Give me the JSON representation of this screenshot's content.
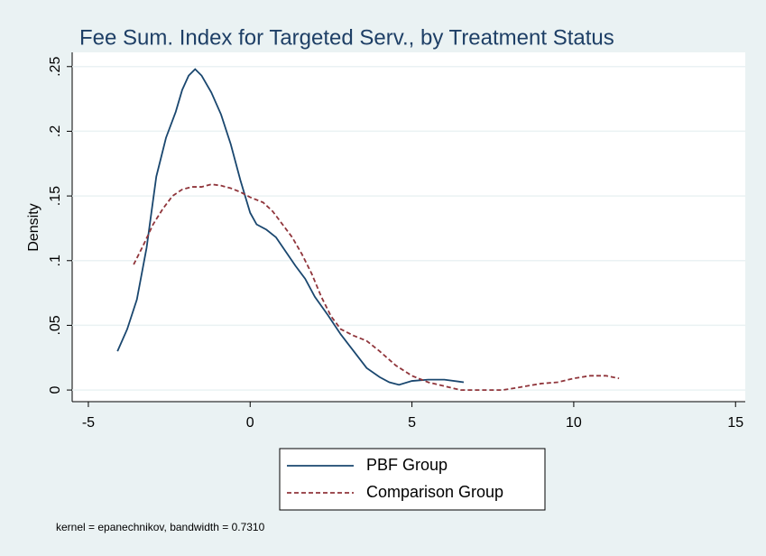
{
  "chart_data": {
    "type": "line",
    "title": "Fee Sum. Index for Targeted Serv., by Treatment Status",
    "y_label": "Density",
    "note": "kernel = epanechnikov, bandwidth = 0.7310",
    "xlim": [
      -5.5,
      15.3
    ],
    "xticks": [
      -5,
      0,
      5,
      10,
      15
    ],
    "ylim": [
      -0.009,
      0.261
    ],
    "yticks": [
      0,
      {
        "value": 0.05,
        "label": ".05"
      },
      {
        "value": 0.1,
        "label": ".1"
      },
      {
        "value": 0.15,
        "label": ".15"
      },
      {
        "value": 0.2,
        "label": ".2"
      },
      {
        "value": 0.25,
        "label": ".25"
      }
    ],
    "grid": true,
    "legend_position": "bottom",
    "series": [
      {
        "name": "PBF Group",
        "color": "#1a476f",
        "dash": false,
        "x": [
          -4.1,
          -3.8,
          -3.5,
          -3.2,
          -2.9,
          -2.6,
          -2.3,
          -2.1,
          -1.9,
          -1.7,
          -1.5,
          -1.2,
          -0.9,
          -0.6,
          -0.3,
          0,
          0.2,
          0.5,
          0.8,
          1.1,
          1.4,
          1.7,
          2.0,
          2.4,
          2.8,
          3.2,
          3.6,
          4.0,
          4.3,
          4.6,
          5.0,
          5.5,
          6.0,
          6.6
        ],
        "values": [
          0.03,
          0.047,
          0.07,
          0.11,
          0.165,
          0.195,
          0.215,
          0.232,
          0.243,
          0.248,
          0.243,
          0.23,
          0.213,
          0.19,
          0.162,
          0.137,
          0.128,
          0.124,
          0.118,
          0.107,
          0.096,
          0.086,
          0.072,
          0.058,
          0.043,
          0.03,
          0.017,
          0.01,
          0.006,
          0.004,
          0.007,
          0.008,
          0.008,
          0.006
        ]
      },
      {
        "name": "Comparison Group",
        "color": "#90353b",
        "dash": true,
        "x": [
          -3.6,
          -3.3,
          -3.0,
          -2.7,
          -2.4,
          -2.1,
          -1.8,
          -1.5,
          -1.2,
          -0.9,
          -0.6,
          -0.3,
          0,
          0.4,
          0.7,
          1.0,
          1.3,
          1.6,
          1.9,
          2.2,
          2.5,
          2.8,
          3.2,
          3.6,
          4.0,
          4.5,
          5.0,
          5.5,
          6.0,
          6.5,
          7.0,
          7.8,
          8.3,
          9.0,
          9.5,
          10.0,
          10.5,
          11.0,
          11.4
        ],
        "values": [
          0.097,
          0.112,
          0.128,
          0.14,
          0.15,
          0.155,
          0.157,
          0.157,
          0.159,
          0.158,
          0.156,
          0.153,
          0.149,
          0.145,
          0.138,
          0.128,
          0.118,
          0.105,
          0.09,
          0.072,
          0.057,
          0.047,
          0.042,
          0.038,
          0.03,
          0.019,
          0.011,
          0.006,
          0.003,
          0.0,
          0.0,
          0.0,
          0.002,
          0.005,
          0.006,
          0.009,
          0.011,
          0.011,
          0.009
        ]
      }
    ]
  }
}
